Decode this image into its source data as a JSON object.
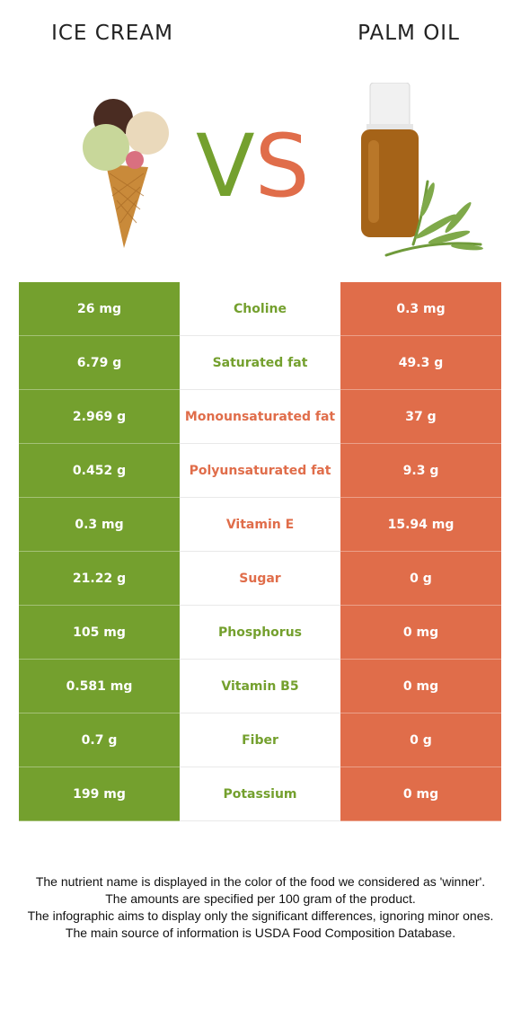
{
  "header": {
    "left_title": "ICE CREAM",
    "right_title": "PALM OIL",
    "vs_v": "V",
    "vs_s": "S"
  },
  "colors": {
    "winner_left": "#74a02e",
    "winner_right": "#e06d4a"
  },
  "rows": [
    {
      "left": "26 mg",
      "nutrient": "Choline",
      "right": "0.3 mg",
      "winner": "left"
    },
    {
      "left": "6.79 g",
      "nutrient": "Saturated fat",
      "right": "49.3 g",
      "winner": "left"
    },
    {
      "left": "2.969 g",
      "nutrient": "Monounsaturated fat",
      "right": "37 g",
      "winner": "right"
    },
    {
      "left": "0.452 g",
      "nutrient": "Polyunsaturated fat",
      "right": "9.3 g",
      "winner": "right"
    },
    {
      "left": "0.3 mg",
      "nutrient": "Vitamin E",
      "right": "15.94 mg",
      "winner": "right"
    },
    {
      "left": "21.22 g",
      "nutrient": "Sugar",
      "right": "0 g",
      "winner": "right"
    },
    {
      "left": "105 mg",
      "nutrient": "Phosphorus",
      "right": "0 mg",
      "winner": "left"
    },
    {
      "left": "0.581 mg",
      "nutrient": "Vitamin B5",
      "right": "0 mg",
      "winner": "left"
    },
    {
      "left": "0.7 g",
      "nutrient": "Fiber",
      "right": "0 g",
      "winner": "left"
    },
    {
      "left": "199 mg",
      "nutrient": "Potassium",
      "right": "0 mg",
      "winner": "left"
    }
  ],
  "footer": {
    "line1": "The nutrient name is displayed in the color of the food we considered as 'winner'.",
    "line2": "The amounts are specified per 100 gram of the product.",
    "line3": "The infographic aims to display only the significant differences, ignoring minor ones.",
    "line4": "The main source of information is USDA Food Composition Database."
  }
}
